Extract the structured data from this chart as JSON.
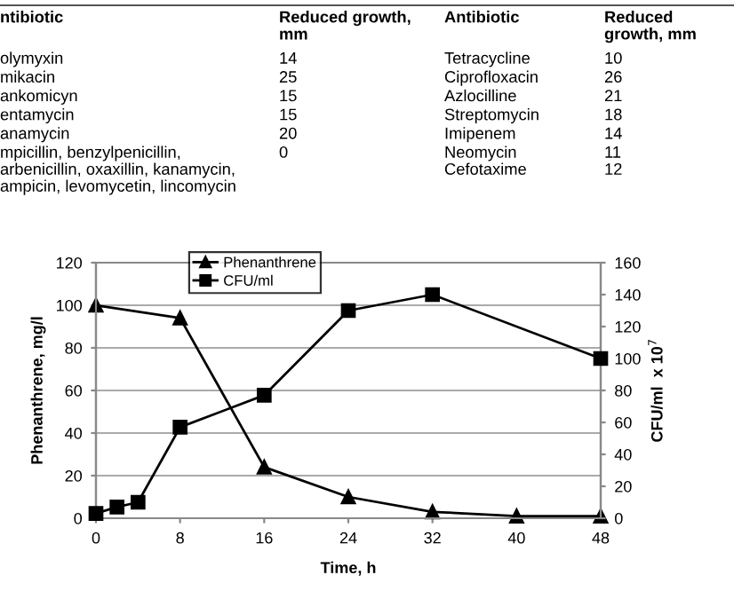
{
  "chart_data": [
    {
      "type": "other",
      "annotations": [
        "ntibiotic",
        "Reduced growth,\nmm",
        "Antibiotic",
        "Reduced\ngrowth, mm",
        "olymyxin",
        "14",
        "Tetracycline",
        "10",
        "mikacin",
        "25",
        "Ciprofloxacin",
        "26",
        "ankomicyn",
        "15",
        "Azlocilline",
        "21",
        "entamycin",
        "15",
        "Streptomycin",
        "18",
        "anamycin",
        "20",
        "Imipenem",
        "14",
        "mpicillin, benzylpenicillin,\narbenicillin, oxaxillin, kanamycin,\nampicin, levomycetin, lincomycin",
        "0",
        "Neomycin\nCefotaxime",
        "11\n12"
      ]
    },
    {
      "type": "line",
      "xlabel": "Time, h",
      "ylabel": "Phenanthrene, mg/l",
      "y2label": "CFU/ml  x 10$^{7}$",
      "series": [
        {
          "name": "Phenanthrene",
          "color": "#000000",
          "marker": "triangle",
          "x": [
            0,
            8,
            16,
            24,
            32,
            40,
            48
          ],
          "values": [
            100,
            94,
            24,
            10,
            3,
            1,
            1
          ]
        },
        {
          "name": "CFU/ml",
          "color": "#000000",
          "marker": "square",
          "axis": "y2",
          "x": [
            0,
            2,
            4,
            8,
            16,
            24,
            32,
            48
          ],
          "values": [
            3,
            7,
            10,
            57,
            77,
            130,
            140,
            100
          ]
        }
      ],
      "xlim": [
        0,
        48
      ],
      "xticks": [
        0,
        8,
        16,
        24,
        32,
        40,
        48
      ],
      "ylim": [
        0,
        120
      ],
      "yticks": [
        0,
        20,
        40,
        60,
        80,
        100,
        120
      ],
      "y2lim": [
        0,
        160
      ],
      "y2ticks": [
        0,
        20,
        40,
        60,
        80,
        100,
        120,
        140,
        160
      ],
      "grid": "y",
      "legend": "top left"
    }
  ]
}
